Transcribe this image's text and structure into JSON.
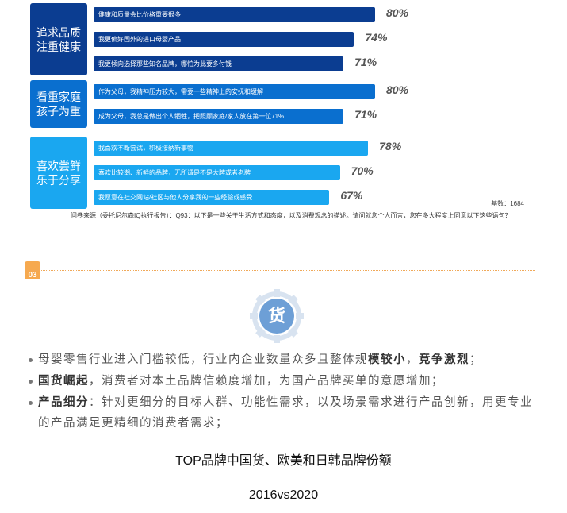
{
  "chart_data": {
    "type": "bar",
    "orientation": "horizontal",
    "groups": [
      {
        "label": "追求品质\n注重健康",
        "color": "#0b3d91",
        "items": [
          {
            "text": "健康和质量会比价格重要很多",
            "value": 80,
            "label": "80%"
          },
          {
            "text": "我更偏好国外的进口母婴产品",
            "value": 74,
            "label": "74%"
          },
          {
            "text": "我更倾向选择那些知名品牌，哪怕为此要多付钱",
            "value": 71,
            "label": "71%"
          }
        ]
      },
      {
        "label": "看重家庭\n孩子为重",
        "color": "#0a6fcf",
        "items": [
          {
            "text": "作为父母，我精神压力较大，需要一些精神上的安抚和缓解",
            "value": 80,
            "label": "80%"
          },
          {
            "text": "成为父母，我总是做出个人牺牲，把照顾家庭/家人放在第一位71%",
            "value": 71,
            "label": "71%"
          }
        ]
      },
      {
        "label": "喜欢尝鲜\n乐于分享",
        "color": "#1aa7f0",
        "items": [
          {
            "text": "我喜欢不断尝试，积极接纳新事物",
            "value": 78,
            "label": "78%"
          },
          {
            "text": "喜欢比较潮、新鲜的品牌，无所谓是不是大牌或者老牌",
            "value": 70,
            "label": "70%"
          },
          {
            "text": "我愿意在社交网站/社区与他人分享我的一些经验或感受",
            "value": 67,
            "label": "67%"
          }
        ]
      }
    ],
    "base": "基数：1684",
    "source": "问卷来源（委托尼尔森IQ执行报告）：Q93：以下是一些关于生活方式和态度，以及消费观念的描述。请问就您个人而言，您在多大程度上同意以下这些语句？"
  },
  "section": {
    "tab_text": "03",
    "accent_color": "#f6a94f",
    "emblem_char": "货"
  },
  "bullets": [
    {
      "parts": [
        {
          "text": "母婴零售行业进入门槛较低，行业内企业数量众多且整体规",
          "bold": false
        },
        {
          "text": "模较小",
          "bold": true
        },
        {
          "text": "，",
          "bold": false
        },
        {
          "text": "竞争激烈",
          "bold": true
        },
        {
          "text": "；",
          "bold": false
        }
      ]
    },
    {
      "parts": [
        {
          "text": "国货崛起",
          "bold": true
        },
        {
          "text": "，消费者对本土品牌信赖度增加，为国产品牌买单的意愿增加；",
          "bold": false
        }
      ]
    },
    {
      "parts": [
        {
          "text": "产品细分",
          "bold": true
        },
        {
          "text": "：针对更细分的目标人群、功能性需求，以及场景需求进行产品创新，用更专业的产品满足更精细的消费者需求；",
          "bold": false
        }
      ]
    }
  ],
  "caption_title": "TOP品牌中国货、欧美和日韩品牌份额",
  "caption_sub": "2016vs2020"
}
